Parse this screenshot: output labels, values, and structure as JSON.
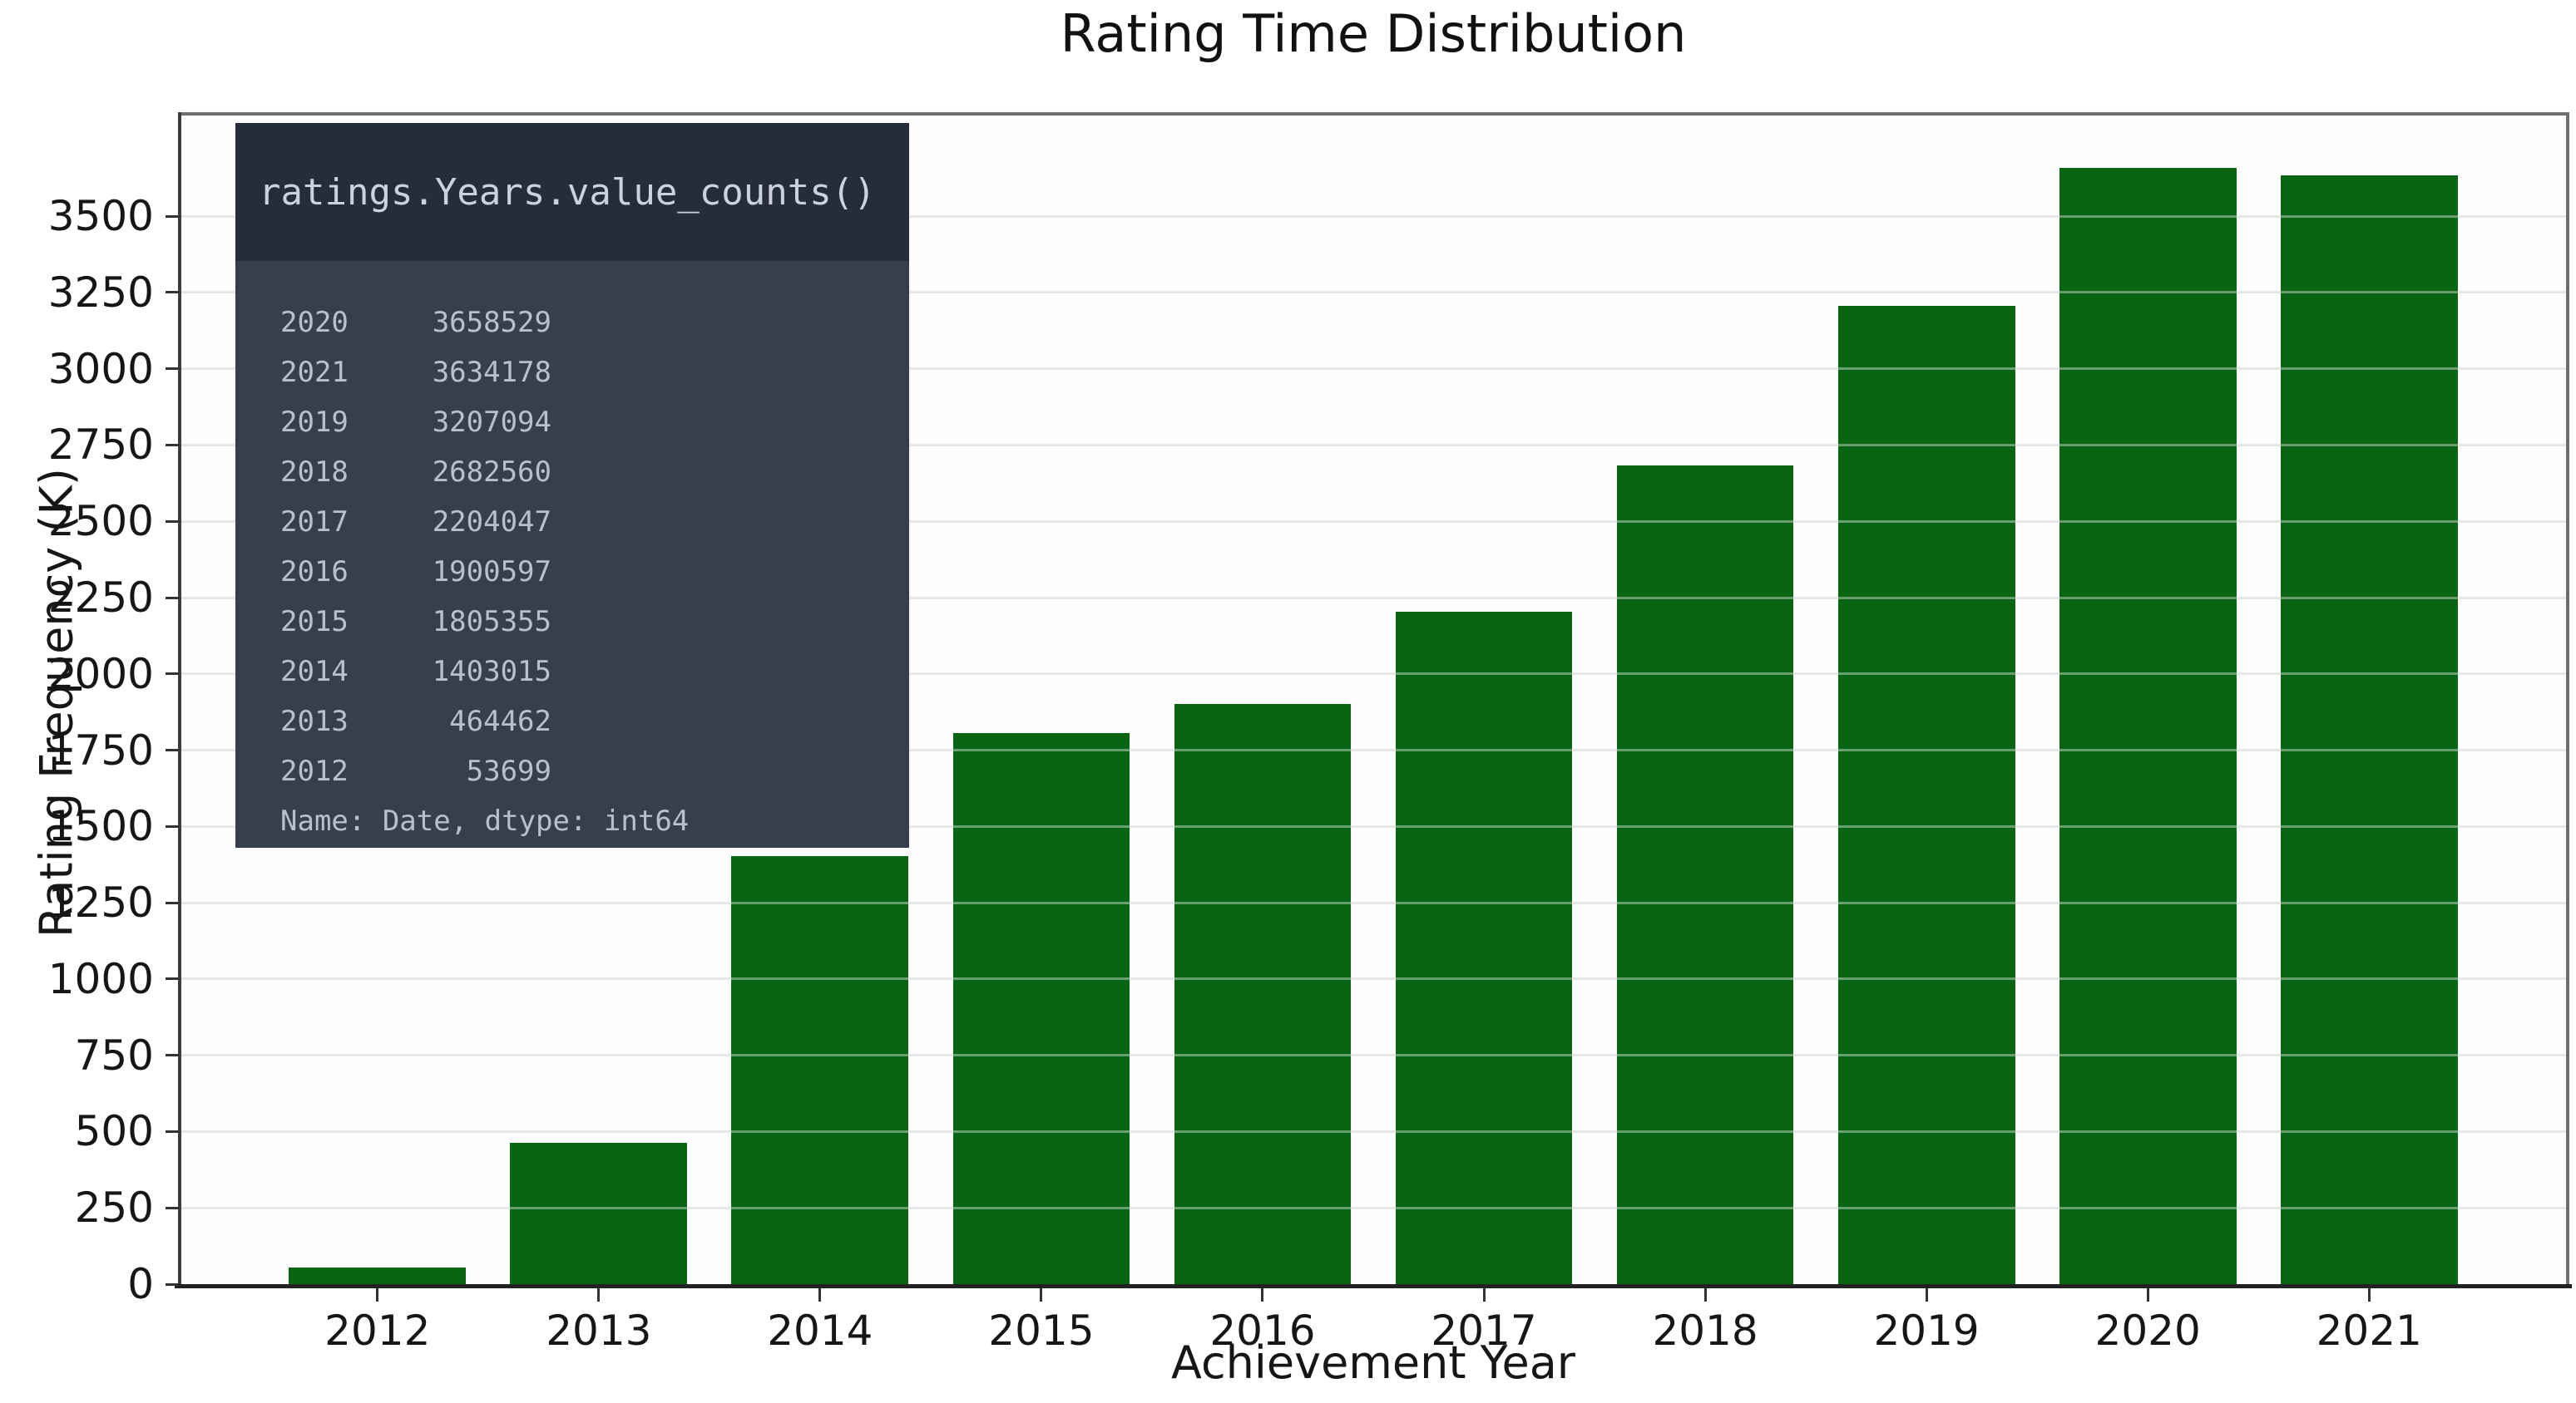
{
  "chart_data": {
    "type": "bar",
    "title": "Rating Time Distribution",
    "xlabel": "Achievement Year",
    "ylabel": "Rating Frequency (K)",
    "categories": [
      "2012",
      "2013",
      "2014",
      "2015",
      "2016",
      "2017",
      "2018",
      "2019",
      "2020",
      "2021"
    ],
    "values": [
      53.699,
      464.462,
      1403.015,
      1805.355,
      1900.597,
      2204.047,
      2682.56,
      3207.094,
      3658.529,
      3634.178
    ],
    "ylim": [
      0,
      3841
    ],
    "yticks": [
      0,
      250,
      500,
      750,
      1000,
      1250,
      1500,
      1750,
      2000,
      2250,
      2500,
      2750,
      3000,
      3250,
      3500
    ],
    "grid": true,
    "legend": false,
    "bar_color": "#0a6513",
    "bar_width_fraction": 0.8
  },
  "inset_panel": {
    "code": "ratings.Years.value_counts()",
    "rows": [
      {
        "year": "2020",
        "count": "3658529"
      },
      {
        "year": "2021",
        "count": "3634178"
      },
      {
        "year": "2019",
        "count": "3207094"
      },
      {
        "year": "2018",
        "count": "2682560"
      },
      {
        "year": "2017",
        "count": "2204047"
      },
      {
        "year": "2016",
        "count": "1900597"
      },
      {
        "year": "2015",
        "count": "1805355"
      },
      {
        "year": "2014",
        "count": "1403015"
      },
      {
        "year": "2013",
        "count": "464462"
      },
      {
        "year": "2012",
        "count": "53699"
      }
    ],
    "footer": "Name: Date, dtype: int64",
    "header_bg": "#262c3a",
    "header_text_color": "#ccd2dc",
    "body_bg": "#373e4d",
    "body_text_color": "#b9c0cc"
  }
}
